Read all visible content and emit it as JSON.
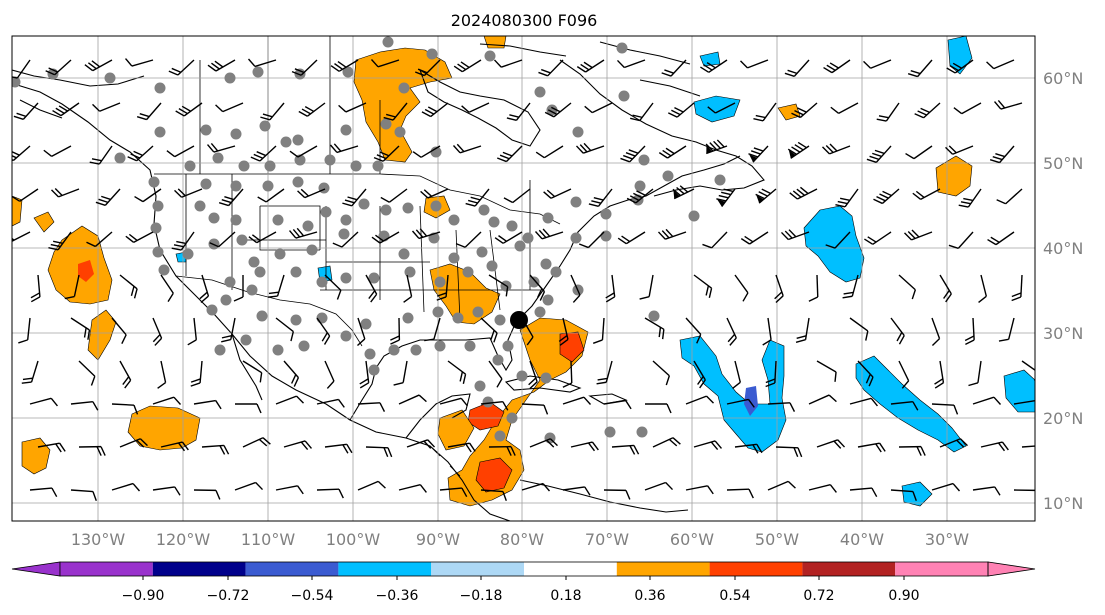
{
  "title": "2024080300 F096",
  "map": {
    "lon_labels": [
      "130°W",
      "120°W",
      "110°W",
      "100°W",
      "90°W",
      "80°W",
      "70°W",
      "60°W",
      "50°W",
      "40°W",
      "30°W"
    ],
    "lat_labels": [
      "60°N",
      "50°N",
      "40°N",
      "30°N",
      "20°N",
      "10°N"
    ],
    "lon_range": [
      -137,
      -16
    ],
    "lat_range": [
      8,
      65
    ]
  },
  "colorbar": {
    "labels": [
      "−0.90",
      "−0.72",
      "−0.54",
      "−0.36",
      "−0.18",
      "0.18",
      "0.36",
      "0.54",
      "0.72",
      "0.90"
    ],
    "colors": [
      "#9932cc",
      "#00008b",
      "#3b5bd1",
      "#00bfff",
      "#add8f5",
      "#ffffff",
      "#ffe680",
      "#ffa500",
      "#ff4000",
      "#b22222",
      "#ff82b4"
    ]
  },
  "colors": {
    "positive_main": "#ffa500",
    "positive_strong": "#ff4000",
    "negative_main": "#00bfff",
    "negative_strong": "#3b5bd1",
    "station_dot": "#808080",
    "coastline": "#000000"
  }
}
